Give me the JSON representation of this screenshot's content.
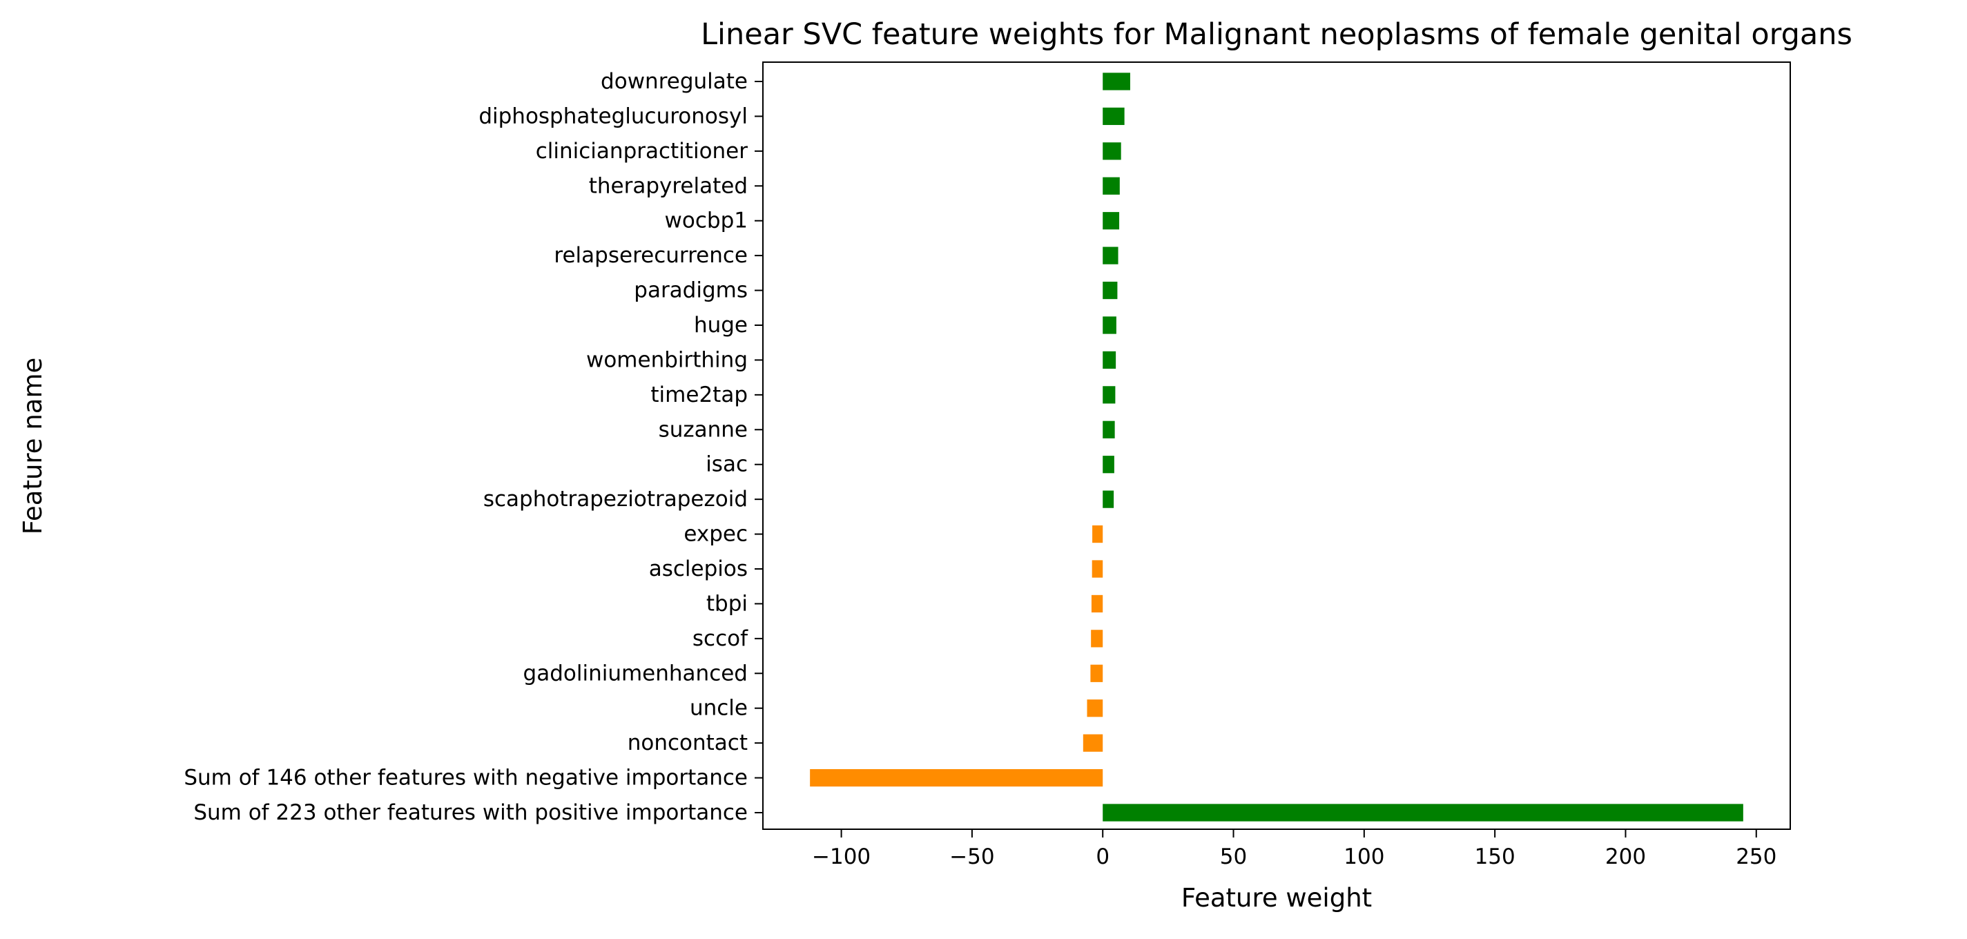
{
  "chart_data": {
    "type": "bar",
    "orientation": "horizontal",
    "title": "Linear SVC feature weights for Malignant neoplasms of female genital organs",
    "xlabel": "Feature weight",
    "ylabel": "Feature name",
    "xlim": [
      -130,
      263
    ],
    "xticks": [
      -100,
      -50,
      0,
      50,
      100,
      150,
      200,
      250
    ],
    "xtick_labels": [
      "−100",
      "−50",
      "0",
      "50",
      "100",
      "150",
      "200",
      "250"
    ],
    "grid": false,
    "legend": "none",
    "colors": {
      "positive": "#008000",
      "negative": "#ff8c00"
    },
    "categories": [
      "downregulate",
      "diphosphateglucuronosyl",
      "clinicianpractitioner",
      "therapyrelated",
      "wocbp1",
      "relapserecurrence",
      "paradigms",
      "huge",
      "womenbirthing",
      "time2tap",
      "suzanne",
      "isac",
      "scaphotrapeziotrapezoid",
      "expec",
      "asclepios",
      "tbpi",
      "sccof",
      "gadoliniumenhanced",
      "uncle",
      "noncontact",
      "Sum of 146 other features with negative importance",
      "Sum of 223 other features with positive importance"
    ],
    "values": [
      10.5,
      8.3,
      7.0,
      6.5,
      6.3,
      5.9,
      5.6,
      5.2,
      5.0,
      4.8,
      4.6,
      4.4,
      4.2,
      -4.0,
      -4.1,
      -4.3,
      -4.5,
      -4.7,
      -6.0,
      -7.5,
      -112,
      245
    ]
  }
}
